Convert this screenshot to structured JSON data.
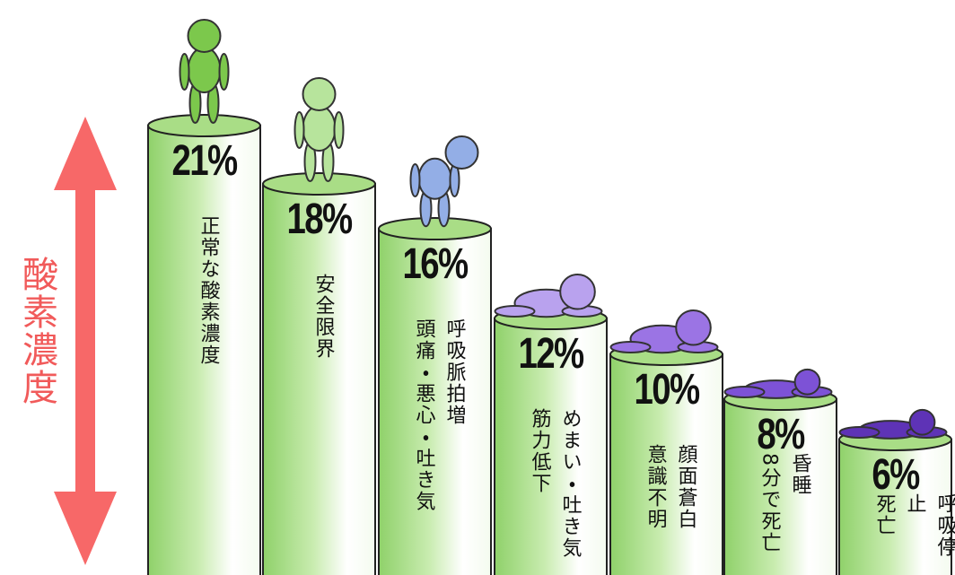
{
  "axis_label": "酸素濃度",
  "columns": [
    {
      "label": "21%",
      "descriptions": [
        "正常な酸素濃度"
      ]
    },
    {
      "label": "18%",
      "descriptions": [
        "安全限界"
      ]
    },
    {
      "label": "16%",
      "descriptions": [
        "呼吸脈拍増",
        "頭痛・悪心・吐き気"
      ]
    },
    {
      "label": "12%",
      "descriptions": [
        "めまい・吐き気",
        "筋力低下"
      ]
    },
    {
      "label": "10%",
      "descriptions": [
        "顔面蒼白",
        "意識不明"
      ]
    },
    {
      "label": "8%",
      "descriptions": [
        "昏睡",
        "8分で死亡"
      ]
    },
    {
      "label": "6%",
      "descriptions": [
        "呼吸停止",
        "死亡"
      ]
    }
  ]
}
